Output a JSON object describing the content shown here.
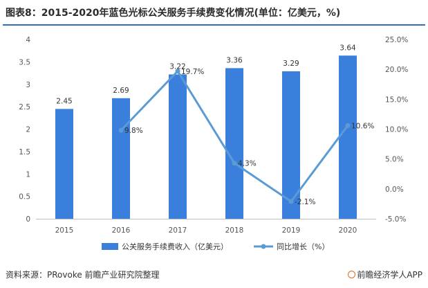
{
  "title": "图表8：2015-2020年蓝色光标公关服务手续费变化情况(单位：亿美元，%)",
  "source": "资料来源：PRovoke 前瞻产业研究院整理",
  "brand": "前瞻经济学人APP",
  "colors": {
    "bar": "#3a7fdc",
    "line": "#5b9bd5",
    "accent": "#2f6fbd",
    "axis": "#bfbfbf"
  },
  "chart_data": {
    "type": "bar+line",
    "categories": [
      "2015",
      "2016",
      "2017",
      "2018",
      "2019",
      "2020"
    ],
    "series": [
      {
        "name": "公关服务手续费收入（亿美元）",
        "type": "bar",
        "axis": "left",
        "values": [
          2.45,
          2.69,
          3.22,
          3.36,
          3.29,
          3.64
        ],
        "labels": [
          "2.45",
          "2.69",
          "3.22",
          "3.36",
          "3.29",
          "3.64"
        ]
      },
      {
        "name": "同比增长（%）",
        "type": "line",
        "axis": "right",
        "values": [
          null,
          9.8,
          19.7,
          4.3,
          -2.1,
          10.6
        ],
        "labels": [
          "",
          "9.8%",
          "19.7%",
          "4.3%",
          "-2.1%",
          "10.6%"
        ]
      }
    ],
    "y_left": {
      "min": 0,
      "max": 4,
      "ticks": [
        "0",
        "0.5",
        "1",
        "1.5",
        "2",
        "2.5",
        "3",
        "3.5",
        "4"
      ]
    },
    "y_right": {
      "min": -5,
      "max": 25,
      "ticks": [
        "-5.0%",
        "0.0%",
        "5.0%",
        "10.0%",
        "15.0%",
        "20.0%",
        "25.0%"
      ]
    },
    "legend_position": "bottom"
  }
}
